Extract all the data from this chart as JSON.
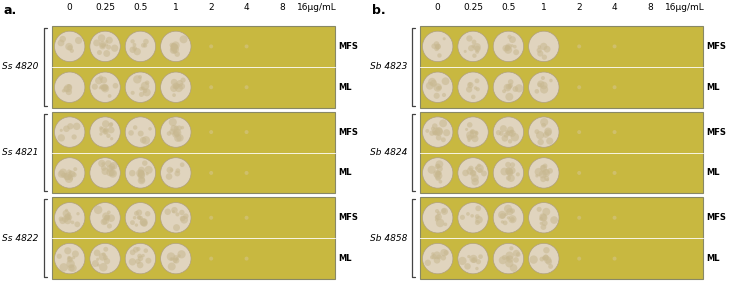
{
  "panel_a_label": "a.",
  "panel_b_label": "b.",
  "concentrations": [
    "0",
    "0.25",
    "0.5",
    "1",
    "2",
    "4",
    "8",
    "16μg/mL"
  ],
  "strains_a": [
    "Ss 4820",
    "Ss 4821",
    "Ss 4822"
  ],
  "strains_b": [
    "Sb 4823",
    "Sb 4824",
    "Sb 4858"
  ],
  "row_labels": [
    "MFS",
    "ML"
  ],
  "bg_color": "#c8b840",
  "colony_color_outer": "#e0d4be",
  "colony_color_texture": "#c8b890",
  "colony_edge_color": "#b0a080",
  "text_color": "#1a1a1a",
  "bracket_color": "#444444",
  "num_cols": 8,
  "visible_colonies": 4,
  "figure_width": 7.35,
  "figure_height": 2.91
}
